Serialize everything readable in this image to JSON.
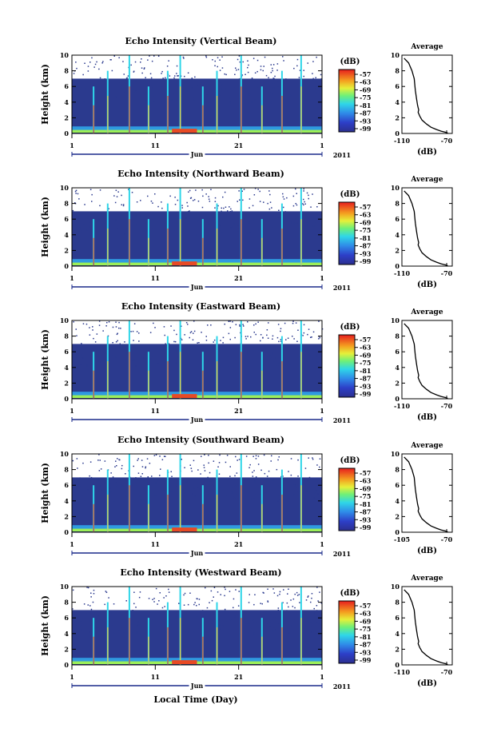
{
  "figure": {
    "xaxis_label": "Local Time (Day)"
  },
  "chart_data": [
    {
      "type": "heatmap",
      "title": "Echo Intensity (Vertical Beam)",
      "ylabel": "Height (km)",
      "ylim": [
        0,
        10
      ],
      "yticks": [
        "0",
        "2",
        "4",
        "6",
        "8",
        "10"
      ],
      "x_ticks": [
        "1",
        "11",
        "21",
        "1"
      ],
      "x_month": "Jun",
      "x_year": "2011",
      "colorbar": {
        "unit": "(dB)",
        "labels": [
          "-57",
          "-63",
          "-69",
          "-75",
          "-81",
          "-87",
          "-93",
          "-99"
        ]
      },
      "avg": {
        "title": "Average",
        "xlabel": "(dB)",
        "xlim": [
          -110,
          -65
        ],
        "xticks": [
          "-110",
          "-70"
        ],
        "yticks": [
          "0",
          "2",
          "4",
          "6",
          "8",
          "10"
        ],
        "profile": {
          "x": [
            -108,
            -104,
            -101,
            -99,
            -98,
            -97,
            -96,
            -95,
            -95.5,
            -94,
            -92,
            -88,
            -84,
            -79,
            -75,
            -71,
            -69
          ],
          "y": [
            9.6,
            9.0,
            8.0,
            7.0,
            5.5,
            4.5,
            3.6,
            3.0,
            2.7,
            2.2,
            1.7,
            1.2,
            0.8,
            0.5,
            0.3,
            0.15,
            0.05
          ]
        }
      }
    },
    {
      "type": "heatmap",
      "title": "Echo Intensity (Northward Beam)",
      "ylabel": "Height (km)",
      "ylim": [
        0,
        10
      ],
      "yticks": [
        "0",
        "2",
        "4",
        "6",
        "8",
        "10"
      ],
      "x_ticks": [
        "1",
        "11",
        "21",
        "1"
      ],
      "x_month": "Jun",
      "x_year": "2011",
      "colorbar": {
        "unit": "(dB)",
        "labels": [
          "-57",
          "-63",
          "-69",
          "-75",
          "-81",
          "-87",
          "-93",
          "-99"
        ]
      },
      "avg": {
        "title": "Average",
        "xlabel": "(dB)",
        "xlim": [
          -110,
          -65
        ],
        "xticks": [
          "-110",
          "-70"
        ],
        "yticks": [
          "0",
          "2",
          "4",
          "6",
          "8",
          "10"
        ],
        "profile": {
          "x": [
            -108,
            -104,
            -101,
            -99,
            -98,
            -97,
            -96,
            -95,
            -95.5,
            -94,
            -92,
            -88,
            -84,
            -79,
            -75,
            -71,
            -69
          ],
          "y": [
            9.6,
            9.0,
            8.0,
            7.0,
            5.5,
            4.5,
            3.6,
            3.0,
            2.7,
            2.2,
            1.7,
            1.2,
            0.8,
            0.5,
            0.3,
            0.15,
            0.05
          ]
        }
      }
    },
    {
      "type": "heatmap",
      "title": "Echo Intensity (Eastward Beam)",
      "ylabel": "Height (km)",
      "ylim": [
        0,
        10
      ],
      "yticks": [
        "0",
        "2",
        "4",
        "6",
        "8",
        "10"
      ],
      "x_ticks": [
        "1",
        "11",
        "21",
        "1"
      ],
      "x_month": "Jun",
      "x_year": "2011",
      "colorbar": {
        "unit": "(dB)",
        "labels": [
          "-57",
          "-63",
          "-69",
          "-75",
          "-81",
          "-87",
          "-93",
          "-99"
        ]
      },
      "avg": {
        "title": "Average",
        "xlabel": "(dB)",
        "xlim": [
          -110,
          -65
        ],
        "xticks": [
          "-110",
          "-70"
        ],
        "yticks": [
          "0",
          "2",
          "4",
          "6",
          "8",
          "10"
        ],
        "profile": {
          "x": [
            -108,
            -104,
            -101,
            -99,
            -98,
            -97,
            -96,
            -95,
            -95.5,
            -94,
            -92,
            -88,
            -84,
            -79,
            -75,
            -71,
            -69
          ],
          "y": [
            9.6,
            9.0,
            8.0,
            7.0,
            5.5,
            4.5,
            3.6,
            3.0,
            2.7,
            2.2,
            1.7,
            1.2,
            0.8,
            0.5,
            0.3,
            0.15,
            0.05
          ]
        }
      }
    },
    {
      "type": "heatmap",
      "title": "Echo Intensity (Southward Beam)",
      "ylabel": "Height (km)",
      "ylim": [
        0,
        10
      ],
      "yticks": [
        "0",
        "2",
        "4",
        "6",
        "8",
        "10"
      ],
      "x_ticks": [
        "1",
        "11",
        "21",
        "1"
      ],
      "x_month": "Jun",
      "x_year": "2011",
      "colorbar": {
        "unit": "(dB)",
        "labels": [
          "-57",
          "-63",
          "-69",
          "-75",
          "-81",
          "-87",
          "-93",
          "-99"
        ]
      },
      "avg": {
        "title": "Average",
        "xlabel": "(dB)",
        "xlim": [
          -110,
          -65
        ],
        "xticks": [
          "-105",
          "-70"
        ],
        "yticks": [
          "0",
          "2",
          "4",
          "6",
          "8",
          "10"
        ],
        "profile": {
          "x": [
            -108,
            -104,
            -101,
            -99,
            -98,
            -97,
            -96,
            -95,
            -95.5,
            -94,
            -92,
            -88,
            -84,
            -79,
            -75,
            -71,
            -69
          ],
          "y": [
            9.6,
            9.0,
            8.0,
            7.0,
            5.5,
            4.5,
            3.6,
            3.0,
            2.7,
            2.2,
            1.7,
            1.2,
            0.8,
            0.5,
            0.3,
            0.15,
            0.05
          ]
        }
      }
    },
    {
      "type": "heatmap",
      "title": "Echo Intensity (Westward Beam)",
      "ylabel": "Height (km)",
      "ylim": [
        0,
        10
      ],
      "yticks": [
        "0",
        "2",
        "4",
        "6",
        "8",
        "10"
      ],
      "x_ticks": [
        "1",
        "11",
        "21",
        "1"
      ],
      "x_month": "Jun",
      "x_year": "2011",
      "colorbar": {
        "unit": "(dB)",
        "labels": [
          "-57",
          "-63",
          "-69",
          "-75",
          "-81",
          "-87",
          "-93",
          "-99"
        ]
      },
      "avg": {
        "title": "Average",
        "xlabel": "(dB)",
        "xlim": [
          -110,
          -65
        ],
        "xticks": [
          "-110",
          "-70"
        ],
        "yticks": [
          "0",
          "2",
          "4",
          "6",
          "8",
          "10"
        ],
        "profile": {
          "x": [
            -108,
            -104,
            -101,
            -99,
            -98,
            -97,
            -96,
            -95,
            -95.5,
            -94,
            -92,
            -88,
            -84,
            -79,
            -75,
            -71,
            -69
          ],
          "y": [
            9.6,
            9.0,
            8.0,
            7.0,
            5.5,
            4.5,
            3.6,
            3.0,
            2.7,
            2.2,
            1.7,
            1.2,
            0.8,
            0.5,
            0.3,
            0.15,
            0.05
          ]
        }
      }
    }
  ]
}
